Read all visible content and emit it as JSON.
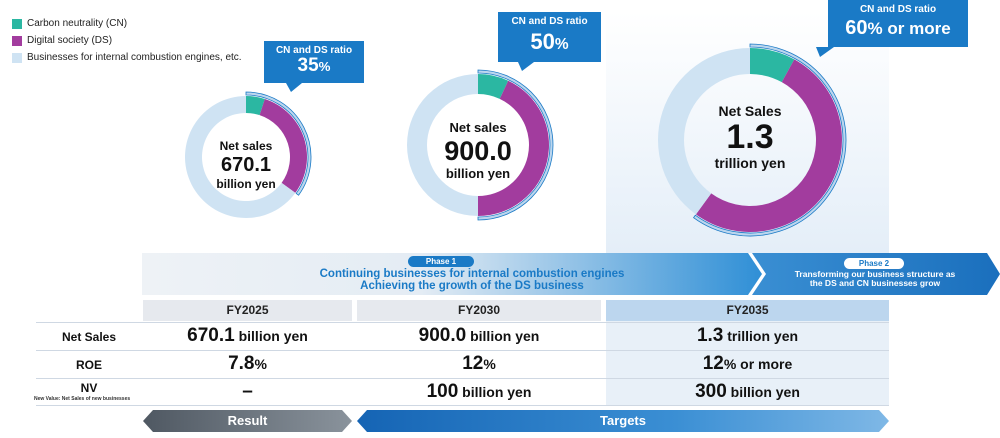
{
  "legend": [
    {
      "label": "Carbon neutrality (CN)",
      "color": "#2bb7a2"
    },
    {
      "label": "Digital society (DS)",
      "color": "#a23c9e"
    },
    {
      "label": "Businesses for internal combustion engines, etc.",
      "color": "#cfe3f3"
    }
  ],
  "chart_data": [
    {
      "type": "pie",
      "title": "FY2025",
      "center": {
        "line1": "Net sales",
        "line2": "670.1",
        "line3": "billion yen"
      },
      "ratio_label": "CN and DS ratio",
      "ratio_value": "35",
      "ratio_suffix": "%",
      "slices": [
        {
          "name": "Carbon neutrality (CN)",
          "value": 5
        },
        {
          "name": "Digital society (DS)",
          "value": 30
        },
        {
          "name": "Businesses for internal combustion engines, etc.",
          "value": 65
        }
      ]
    },
    {
      "type": "pie",
      "title": "FY2030",
      "center": {
        "line1": "Net sales",
        "line2": "900.0",
        "line3": "billion yen"
      },
      "ratio_label": "CN and DS ratio",
      "ratio_value": "50",
      "ratio_suffix": "%",
      "slices": [
        {
          "name": "Carbon neutrality (CN)",
          "value": 7
        },
        {
          "name": "Digital society (DS)",
          "value": 43
        },
        {
          "name": "Businesses for internal combustion engines, etc.",
          "value": 50
        }
      ]
    },
    {
      "type": "pie",
      "title": "FY2035",
      "center": {
        "line1": "Net Sales",
        "line2": "1.3",
        "line3": "trillion yen"
      },
      "ratio_label": "CN and DS ratio",
      "ratio_value": "60",
      "ratio_suffix": "% or more",
      "slices": [
        {
          "name": "Carbon neutrality (CN)",
          "value": 8
        },
        {
          "name": "Digital society (DS)",
          "value": 52
        },
        {
          "name": "Businesses for internal combustion engines, etc.",
          "value": 40
        }
      ]
    }
  ],
  "phase1": {
    "label": "Phase 1",
    "line1": "Continuing businesses for internal combustion engines",
    "line2": "Achieving the growth of the DS business"
  },
  "phase2": {
    "label": "Phase 2",
    "line1": "Transforming our business structure as",
    "line2": "the DS and CN businesses grow"
  },
  "table": {
    "years": [
      "FY2025",
      "FY2030",
      "FY2035"
    ],
    "rows": [
      {
        "label": "Net Sales",
        "note": "",
        "values": [
          {
            "num": "670.1",
            "unit": " billion yen"
          },
          {
            "num": "900.0",
            "unit": " billion yen"
          },
          {
            "num": "1.3",
            "unit": " trillion yen"
          }
        ]
      },
      {
        "label": "ROE",
        "note": "",
        "values": [
          {
            "num": "7.8",
            "unit": "%"
          },
          {
            "num": "12",
            "unit": "%"
          },
          {
            "num": "12",
            "unit": "% or more"
          }
        ]
      },
      {
        "label": "NV",
        "note": "New Value: Net Sales of new businesses",
        "values": [
          {
            "num": "–",
            "unit": ""
          },
          {
            "num": "100",
            "unit": " billion yen"
          },
          {
            "num": "300",
            "unit": " billion yen"
          }
        ]
      }
    ]
  },
  "footer": {
    "result": "Result",
    "targets": "Targets"
  }
}
